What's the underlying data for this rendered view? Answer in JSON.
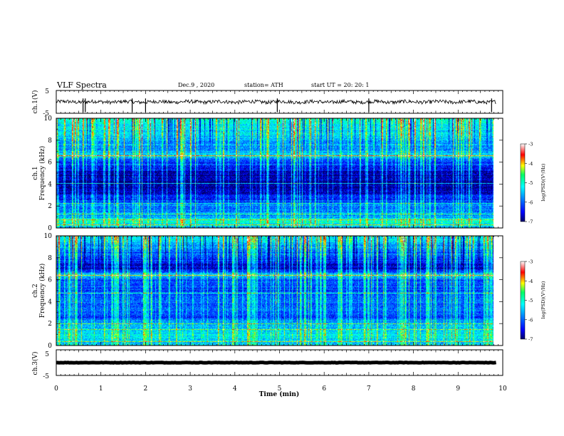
{
  "header": {
    "title": "VLF Spectra",
    "date": "Dec.9  , 2020",
    "station": "station= ATH",
    "start": "start  UT =   20: 20: 1"
  },
  "colors": {
    "spectrogram_scale": [
      "#000066",
      "#0000ff",
      "#0088ff",
      "#00ffff",
      "#00ff66",
      "#ffff00",
      "#ff0000",
      "#ffffff"
    ],
    "waveform": "#000000"
  },
  "chart_data": [
    {
      "type": "line",
      "name": "ch1-waveform",
      "ylabel": "ch.1(V)",
      "ylim": [
        -5,
        5
      ],
      "yticks": [
        5,
        -5
      ],
      "xlim": [
        0,
        10
      ],
      "baseline": 0,
      "noise_amplitude": 0.8,
      "spikes_min": [
        0.6,
        0.65,
        1.7,
        2.0,
        4.95,
        7.0,
        9.75
      ]
    },
    {
      "type": "heatmap",
      "name": "ch1-spectrogram",
      "ylabel": "ch.1\nFrequency (kHz)",
      "ylim": [
        0,
        10
      ],
      "yticks": [
        0,
        2,
        4,
        6,
        8,
        10
      ],
      "xlim": [
        0,
        10
      ],
      "data_end_min": 9.8,
      "colorbar": {
        "label": "log(PSD)(V²/Hz)",
        "range": [
          -7,
          -3
        ],
        "ticks": [
          -3,
          -4,
          -5,
          -6,
          -7
        ]
      },
      "level_profile": [
        {
          "f": 0.0,
          "level": -5.6
        },
        {
          "f": 0.6,
          "level": -5.0
        },
        {
          "f": 1.0,
          "level": -5.7
        },
        {
          "f": 2.0,
          "level": -5.9
        },
        {
          "f": 2.4,
          "level": -6.2
        },
        {
          "f": 3.0,
          "level": -6.5
        },
        {
          "f": 3.5,
          "level": -6.9
        },
        {
          "f": 5.0,
          "level": -6.9
        },
        {
          "f": 5.5,
          "level": -6.3
        },
        {
          "f": 6.2,
          "level": -6.2
        },
        {
          "f": 6.6,
          "level": -5.2
        },
        {
          "f": 7.2,
          "level": -5.8
        },
        {
          "f": 8.5,
          "level": -5.4
        },
        {
          "f": 10.0,
          "level": -5.0
        }
      ],
      "lines_khz": [
        0.3,
        0.8,
        1.3,
        2.3,
        4.1,
        6.6
      ],
      "sferic_count": 140
    },
    {
      "type": "heatmap",
      "name": "ch2-spectrogram",
      "ylabel": "ch.2\nFrequency (kHz)",
      "ylim": [
        0,
        10
      ],
      "yticks": [
        0,
        2,
        4,
        6,
        8,
        10
      ],
      "xlim": [
        0,
        10
      ],
      "data_end_min": 9.8,
      "colorbar": {
        "label": "log(PSD)(V²/Hz)",
        "range": [
          -7,
          -3
        ],
        "ticks": [
          -3,
          -4,
          -5,
          -6,
          -7
        ]
      },
      "level_profile": [
        {
          "f": 0.0,
          "level": -5.4
        },
        {
          "f": 1.0,
          "level": -5.3
        },
        {
          "f": 2.0,
          "level": -5.6
        },
        {
          "f": 2.5,
          "level": -6.2
        },
        {
          "f": 4.0,
          "level": -6.0
        },
        {
          "f": 5.0,
          "level": -6.2
        },
        {
          "f": 6.0,
          "level": -6.1
        },
        {
          "f": 6.4,
          "level": -5.3
        },
        {
          "f": 7.0,
          "level": -6.7
        },
        {
          "f": 8.0,
          "level": -6.3
        },
        {
          "f": 10.0,
          "level": -5.1
        }
      ],
      "lines_khz": [
        0.4,
        1.5,
        2.0,
        4.8,
        6.4
      ],
      "sferic_count": 170
    },
    {
      "type": "line",
      "name": "ch3-waveform",
      "ylabel": "ch.3(V)",
      "ylim": [
        -5,
        5
      ],
      "yticks": [
        5,
        -5
      ],
      "xlim": [
        0,
        10
      ],
      "baseline": 0,
      "noise_amplitude": 0.15,
      "spikes_min": []
    }
  ],
  "xaxis": {
    "label": "Time (min)",
    "range": [
      0,
      10
    ],
    "ticks": [
      0,
      1,
      2,
      3,
      4,
      5,
      6,
      7,
      8,
      9,
      10
    ]
  }
}
